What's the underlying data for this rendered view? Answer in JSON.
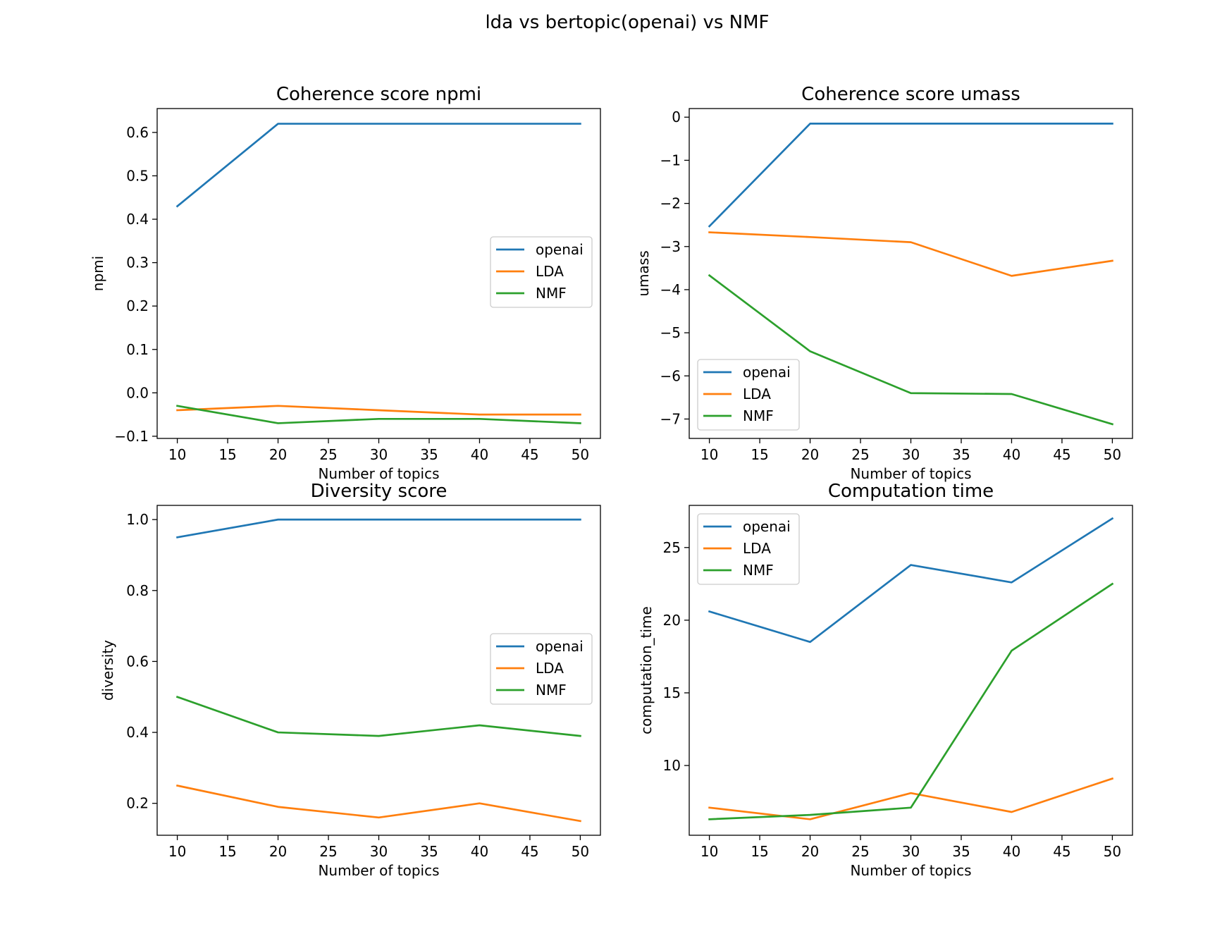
{
  "figure": {
    "suptitle": "lda vs bertopic(openai) vs NMF"
  },
  "series_styles": [
    {
      "name": "openai",
      "color": "#1f77b4"
    },
    {
      "name": "LDA",
      "color": "#ff7f0e"
    },
    {
      "name": "NMF",
      "color": "#2ca02c"
    }
  ],
  "chart_data": [
    {
      "type": "line",
      "title": "Coherence score npmi",
      "xlabel": "Number of topics",
      "ylabel": "npmi",
      "x": [
        10,
        20,
        30,
        40,
        50
      ],
      "xlim": [
        8,
        52
      ],
      "ylim": [
        -0.105,
        0.655
      ],
      "xticks": [
        10,
        15,
        20,
        25,
        30,
        35,
        40,
        45,
        50
      ],
      "xtick_labels": [
        "10",
        "15",
        "20",
        "25",
        "30",
        "35",
        "40",
        "45",
        "50"
      ],
      "yticks": [
        -0.1,
        0.0,
        0.1,
        0.2,
        0.3,
        0.4,
        0.5,
        0.6
      ],
      "ytick_labels": [
        "−0.1",
        "0.0",
        "0.1",
        "0.2",
        "0.3",
        "0.4",
        "0.5",
        "0.6"
      ],
      "legend": "center-right",
      "grid": false,
      "series": [
        {
          "name": "openai",
          "values": [
            0.43,
            0.62,
            0.62,
            0.62,
            0.62
          ]
        },
        {
          "name": "LDA",
          "values": [
            -0.04,
            -0.03,
            -0.04,
            -0.05,
            -0.05
          ]
        },
        {
          "name": "NMF",
          "values": [
            -0.03,
            -0.07,
            -0.06,
            -0.06,
            -0.07
          ]
        }
      ]
    },
    {
      "type": "line",
      "title": "Coherence score umass",
      "xlabel": "Number of topics",
      "ylabel": "umass",
      "x": [
        10,
        20,
        30,
        40,
        50
      ],
      "xlim": [
        8,
        52
      ],
      "ylim": [
        -7.45,
        0.2
      ],
      "xticks": [
        10,
        15,
        20,
        25,
        30,
        35,
        40,
        45,
        50
      ],
      "xtick_labels": [
        "10",
        "15",
        "20",
        "25",
        "30",
        "35",
        "40",
        "45",
        "50"
      ],
      "yticks": [
        0,
        -1,
        -2,
        -3,
        -4,
        -5,
        -6,
        -7
      ],
      "ytick_labels": [
        "0",
        "−1",
        "−2",
        "−3",
        "−4",
        "−5",
        "−6",
        "−7"
      ],
      "legend": "lower-left",
      "grid": false,
      "series": [
        {
          "name": "openai",
          "values": [
            -2.53,
            -0.15,
            -0.15,
            -0.15,
            -0.15
          ]
        },
        {
          "name": "LDA",
          "values": [
            -2.67,
            -2.78,
            -2.9,
            -3.68,
            -3.33
          ]
        },
        {
          "name": "NMF",
          "values": [
            -3.67,
            -5.43,
            -6.4,
            -6.42,
            -7.12
          ]
        }
      ]
    },
    {
      "type": "line",
      "title": "Diversity score",
      "xlabel": "Number of topics",
      "ylabel": "diversity",
      "x": [
        10,
        20,
        30,
        40,
        50
      ],
      "xlim": [
        8,
        52
      ],
      "ylim": [
        0.11,
        1.04
      ],
      "xticks": [
        10,
        15,
        20,
        25,
        30,
        35,
        40,
        45,
        50
      ],
      "xtick_labels": [
        "10",
        "15",
        "20",
        "25",
        "30",
        "35",
        "40",
        "45",
        "50"
      ],
      "yticks": [
        0.2,
        0.4,
        0.6,
        0.8,
        1.0
      ],
      "ytick_labels": [
        "0.2",
        "0.4",
        "0.6",
        "0.8",
        "1.0"
      ],
      "legend": "center-right",
      "grid": false,
      "series": [
        {
          "name": "openai",
          "values": [
            0.95,
            1.0,
            1.0,
            1.0,
            1.0
          ]
        },
        {
          "name": "LDA",
          "values": [
            0.25,
            0.19,
            0.16,
            0.2,
            0.15
          ]
        },
        {
          "name": "NMF",
          "values": [
            0.5,
            0.4,
            0.39,
            0.42,
            0.39
          ]
        }
      ]
    },
    {
      "type": "line",
      "title": "Computation time",
      "xlabel": "Number of topics",
      "ylabel": "computation_time",
      "x": [
        10,
        20,
        30,
        40,
        50
      ],
      "xlim": [
        8,
        52
      ],
      "ylim": [
        5.2,
        27.9
      ],
      "xticks": [
        10,
        15,
        20,
        25,
        30,
        35,
        40,
        45,
        50
      ],
      "xtick_labels": [
        "10",
        "15",
        "20",
        "25",
        "30",
        "35",
        "40",
        "45",
        "50"
      ],
      "yticks": [
        10,
        15,
        20,
        25
      ],
      "ytick_labels": [
        "10",
        "15",
        "20",
        "25"
      ],
      "legend": "upper-left",
      "grid": false,
      "series": [
        {
          "name": "openai",
          "values": [
            20.6,
            18.5,
            23.8,
            22.6,
            27.0
          ]
        },
        {
          "name": "LDA",
          "values": [
            7.1,
            6.3,
            8.1,
            6.8,
            9.1
          ]
        },
        {
          "name": "NMF",
          "values": [
            6.3,
            6.6,
            7.1,
            17.9,
            22.5
          ]
        }
      ]
    }
  ]
}
